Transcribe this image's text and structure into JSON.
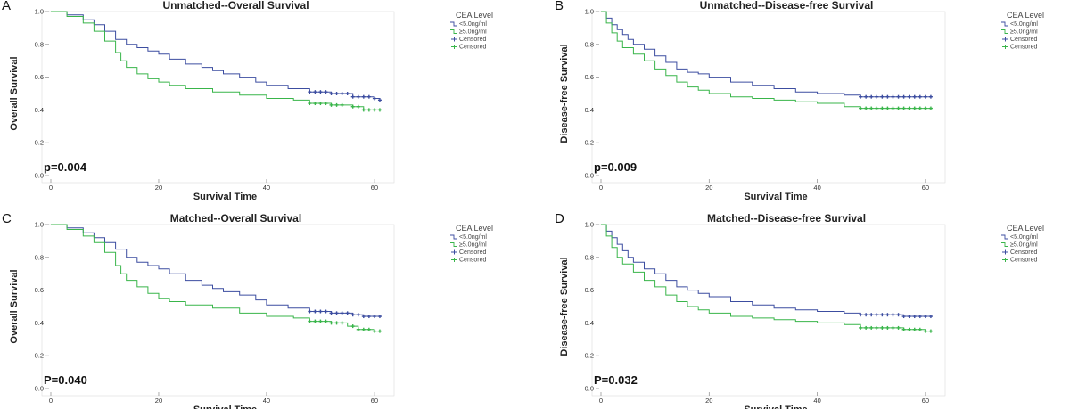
{
  "colors": {
    "group_low": "#3c4da0",
    "group_high": "#39b54a",
    "axis": "#888888"
  },
  "chart_data": [
    {
      "type": "line",
      "panel": "A",
      "title": "Unmatched--Overall Survival",
      "xlabel": "Survival Time",
      "ylabel": "Overall Survival",
      "xlim": [
        0,
        62
      ],
      "ylim": [
        0,
        1
      ],
      "xticks": [
        0,
        20,
        40,
        60
      ],
      "yticks": [
        "0.0",
        "0.2",
        "0.4",
        "0.6",
        "0.8",
        "1.0"
      ],
      "legend_title": "CEA Level",
      "legend": [
        "<5.0ng/ml",
        "≥5.0ng/ml",
        "Censored",
        "Censored"
      ],
      "pvalue": "p=0.004",
      "series": [
        {
          "name": "<5.0ng/ml",
          "color": "#3c4da0",
          "x": [
            0,
            3,
            6,
            8,
            10,
            12,
            14,
            16,
            18,
            20,
            22,
            25,
            28,
            30,
            32,
            35,
            38,
            40,
            44,
            48,
            52,
            56,
            60,
            61
          ],
          "y": [
            1.0,
            0.98,
            0.95,
            0.92,
            0.88,
            0.83,
            0.8,
            0.78,
            0.76,
            0.74,
            0.71,
            0.68,
            0.66,
            0.64,
            0.62,
            0.6,
            0.57,
            0.55,
            0.53,
            0.51,
            0.5,
            0.48,
            0.47,
            0.46
          ],
          "censored_x": [
            48,
            49,
            50,
            51,
            52,
            53,
            54,
            55,
            56,
            57,
            58,
            59,
            60,
            61
          ]
        },
        {
          "name": "≥5.0ng/ml",
          "color": "#39b54a",
          "x": [
            0,
            3,
            6,
            8,
            10,
            12,
            13,
            14,
            16,
            18,
            20,
            22,
            25,
            30,
            35,
            40,
            45,
            48,
            52,
            56,
            58,
            61
          ],
          "y": [
            1.0,
            0.97,
            0.93,
            0.88,
            0.82,
            0.75,
            0.7,
            0.66,
            0.62,
            0.59,
            0.57,
            0.55,
            0.53,
            0.51,
            0.49,
            0.47,
            0.46,
            0.44,
            0.43,
            0.42,
            0.4,
            0.4
          ],
          "censored_x": [
            48,
            49,
            50,
            51,
            52,
            53,
            54,
            56,
            57,
            58,
            59,
            60,
            61
          ]
        }
      ]
    },
    {
      "type": "line",
      "panel": "B",
      "title": "Unmatched--Disease-free Survival",
      "xlabel": "Survival Time",
      "ylabel": "Disease-free Survival",
      "xlim": [
        0,
        62
      ],
      "ylim": [
        0,
        1
      ],
      "xticks": [
        0,
        20,
        40,
        60
      ],
      "yticks": [
        "0.0",
        "0.2",
        "0.4",
        "0.6",
        "0.8",
        "1.0"
      ],
      "legend_title": "CEA Level",
      "legend": [
        "<5.0ng/ml",
        "≥5.0ng/ml",
        "Censored",
        "Censored"
      ],
      "pvalue": "p=0.009",
      "series": [
        {
          "name": "<5.0ng/ml",
          "color": "#3c4da0",
          "x": [
            0,
            1,
            2,
            3,
            4,
            5,
            6,
            8,
            10,
            12,
            14,
            16,
            18,
            20,
            24,
            28,
            32,
            36,
            40,
            45,
            48,
            52,
            56,
            60,
            61
          ],
          "y": [
            1.0,
            0.96,
            0.92,
            0.89,
            0.86,
            0.83,
            0.8,
            0.77,
            0.73,
            0.69,
            0.65,
            0.63,
            0.62,
            0.6,
            0.57,
            0.55,
            0.53,
            0.51,
            0.5,
            0.49,
            0.48,
            0.48,
            0.48,
            0.48,
            0.48
          ],
          "censored_x": [
            48,
            49,
            50,
            51,
            52,
            53,
            54,
            55,
            56,
            57,
            58,
            59,
            60,
            61
          ]
        },
        {
          "name": "≥5.0ng/ml",
          "color": "#39b54a",
          "x": [
            0,
            1,
            2,
            3,
            4,
            6,
            8,
            10,
            12,
            14,
            16,
            18,
            20,
            24,
            28,
            32,
            36,
            40,
            45,
            48,
            52,
            56,
            60,
            61
          ],
          "y": [
            1.0,
            0.93,
            0.87,
            0.82,
            0.78,
            0.74,
            0.7,
            0.65,
            0.61,
            0.57,
            0.54,
            0.52,
            0.5,
            0.48,
            0.47,
            0.46,
            0.45,
            0.44,
            0.42,
            0.41,
            0.41,
            0.41,
            0.41,
            0.41
          ],
          "censored_x": [
            48,
            49,
            50,
            51,
            52,
            53,
            54,
            55,
            56,
            57,
            58,
            59,
            60,
            61
          ]
        }
      ]
    },
    {
      "type": "line",
      "panel": "C",
      "title": "Matched--Overall Survival",
      "xlabel": "Survival Time",
      "ylabel": "Overall Survival",
      "xlim": [
        0,
        62
      ],
      "ylim": [
        0,
        1
      ],
      "xticks": [
        0,
        20,
        40,
        60
      ],
      "yticks": [
        "0.0",
        "0.2",
        "0.4",
        "0.6",
        "0.8",
        "1.0"
      ],
      "legend_title": "CEA Level",
      "legend": [
        "<5.0ng/ml",
        "≥5.0ng/ml",
        "Censored",
        "Censored"
      ],
      "pvalue": "P=0.040",
      "series": [
        {
          "name": "<5.0ng/ml",
          "color": "#3c4da0",
          "x": [
            0,
            3,
            6,
            8,
            10,
            12,
            14,
            16,
            18,
            20,
            22,
            25,
            28,
            30,
            32,
            35,
            38,
            40,
            44,
            48,
            52,
            56,
            58,
            60,
            61
          ],
          "y": [
            1.0,
            0.98,
            0.95,
            0.92,
            0.89,
            0.85,
            0.8,
            0.77,
            0.75,
            0.73,
            0.7,
            0.66,
            0.63,
            0.61,
            0.59,
            0.57,
            0.54,
            0.51,
            0.49,
            0.47,
            0.46,
            0.45,
            0.44,
            0.44,
            0.44
          ],
          "censored_x": [
            48,
            49,
            50,
            51,
            52,
            53,
            54,
            55,
            56,
            57,
            58,
            59,
            60,
            61
          ]
        },
        {
          "name": "≥5.0ng/ml",
          "color": "#39b54a",
          "x": [
            0,
            3,
            6,
            8,
            10,
            12,
            13,
            14,
            16,
            18,
            20,
            22,
            25,
            30,
            35,
            40,
            45,
            48,
            52,
            55,
            57,
            60,
            61
          ],
          "y": [
            1.0,
            0.97,
            0.93,
            0.89,
            0.83,
            0.75,
            0.7,
            0.66,
            0.62,
            0.58,
            0.55,
            0.53,
            0.51,
            0.49,
            0.46,
            0.44,
            0.43,
            0.41,
            0.4,
            0.38,
            0.36,
            0.35,
            0.35
          ],
          "censored_x": [
            48,
            49,
            50,
            51,
            52,
            53,
            54,
            56,
            57,
            58,
            59,
            60,
            61
          ]
        }
      ]
    },
    {
      "type": "line",
      "panel": "D",
      "title": "Matched--Disease-free Survival",
      "xlabel": "Survival Time",
      "ylabel": "Disease-free Survival",
      "xlim": [
        0,
        62
      ],
      "ylim": [
        0,
        1
      ],
      "xticks": [
        0,
        20,
        40,
        60
      ],
      "yticks": [
        "0.0",
        "0.2",
        "0.4",
        "0.6",
        "0.8",
        "1.0"
      ],
      "legend_title": "CEA Level",
      "legend": [
        "<5.0ng/ml",
        "≥5.0ng/ml",
        "Censored",
        "Censored"
      ],
      "pvalue": "P=0.032",
      "series": [
        {
          "name": "<5.0ng/ml",
          "color": "#3c4da0",
          "x": [
            0,
            1,
            2,
            3,
            4,
            5,
            6,
            8,
            10,
            12,
            14,
            16,
            18,
            20,
            24,
            28,
            32,
            36,
            40,
            45,
            48,
            52,
            56,
            60,
            61
          ],
          "y": [
            1.0,
            0.96,
            0.92,
            0.88,
            0.84,
            0.8,
            0.77,
            0.73,
            0.7,
            0.66,
            0.62,
            0.6,
            0.58,
            0.56,
            0.53,
            0.51,
            0.49,
            0.48,
            0.47,
            0.46,
            0.45,
            0.45,
            0.44,
            0.44,
            0.44
          ],
          "censored_x": [
            48,
            49,
            50,
            51,
            52,
            53,
            54,
            55,
            56,
            57,
            58,
            59,
            60,
            61
          ]
        },
        {
          "name": "≥5.0ng/ml",
          "color": "#39b54a",
          "x": [
            0,
            1,
            2,
            3,
            4,
            6,
            8,
            10,
            12,
            14,
            16,
            18,
            20,
            24,
            28,
            32,
            36,
            40,
            45,
            48,
            52,
            56,
            60,
            61
          ],
          "y": [
            1.0,
            0.93,
            0.86,
            0.8,
            0.76,
            0.71,
            0.66,
            0.62,
            0.57,
            0.53,
            0.5,
            0.48,
            0.46,
            0.44,
            0.43,
            0.42,
            0.41,
            0.4,
            0.39,
            0.37,
            0.37,
            0.36,
            0.35,
            0.35
          ],
          "censored_x": [
            48,
            49,
            50,
            51,
            52,
            53,
            54,
            55,
            56,
            57,
            58,
            59,
            60,
            61
          ]
        }
      ]
    }
  ]
}
